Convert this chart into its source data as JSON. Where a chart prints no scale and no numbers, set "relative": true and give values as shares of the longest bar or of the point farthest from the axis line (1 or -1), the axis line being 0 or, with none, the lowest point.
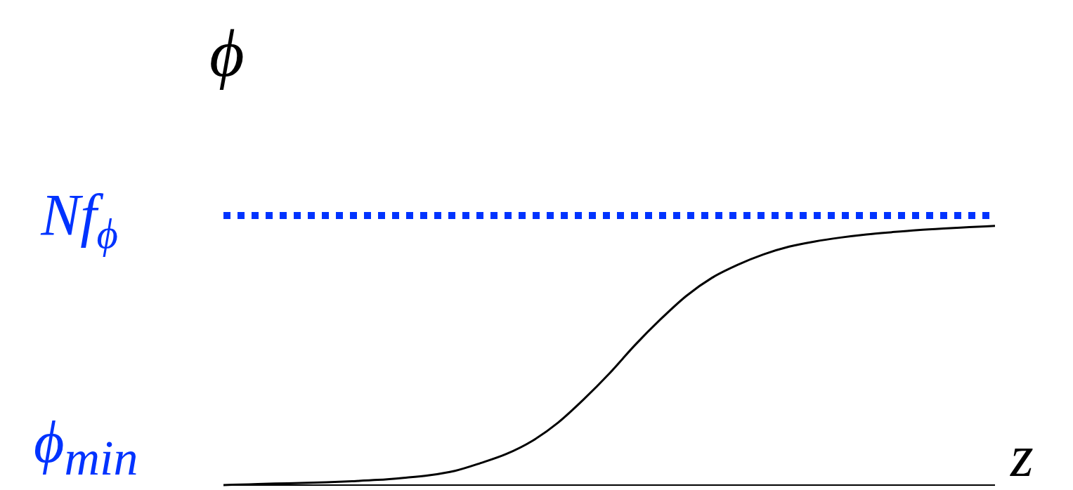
{
  "chart_data": {
    "type": "line",
    "relative": true,
    "ylabel": "ϕ",
    "xlabel": "z",
    "categories": [
      null,
      null,
      null,
      null,
      null,
      null,
      null,
      null,
      null,
      null,
      null,
      null,
      null,
      null,
      null,
      null,
      null,
      null,
      null,
      null,
      null,
      null,
      null,
      null,
      null,
      null,
      null,
      null,
      null,
      null,
      null
    ],
    "series": [
      {
        "color": "#000000",
        "values": [
          0,
          0.003,
          0.006,
          0.008,
          0.011,
          0.015,
          0.02,
          0.028,
          0.038,
          0.055,
          0.085,
          0.12,
          0.17,
          0.24,
          0.33,
          0.43,
          0.54,
          0.64,
          0.73,
          0.8,
          0.85,
          0.89,
          0.92,
          0.94,
          0.955,
          0.967,
          0.976,
          0.984,
          0.99,
          0.995,
          1
        ]
      }
    ],
    "ref_lines": [
      {
        "axis": "y",
        "value": 1.04,
        "label": "Nf$_{ϕ}$",
        "color": "#0033ff",
        "line_style": "dotted"
      }
    ],
    "annotations": [
      "ϕ$_{min}$"
    ],
    "marker": "none",
    "line_style": "solid",
    "grid": false,
    "legend": false
  }
}
